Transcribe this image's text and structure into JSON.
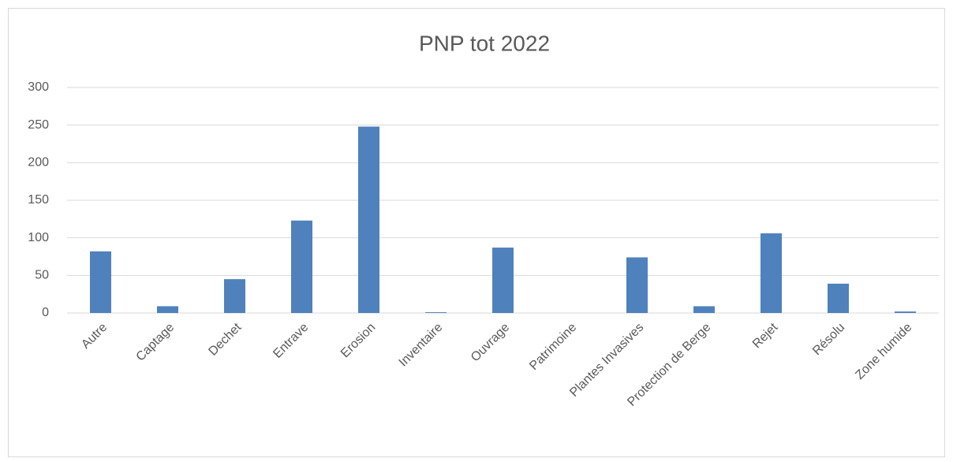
{
  "chart_data": {
    "type": "bar",
    "title": "PNP tot 2022",
    "categories": [
      "Autre",
      "Captage",
      "Dechet",
      "Entrave",
      "Erosion",
      "Inventaire",
      "Ouvrage",
      "Patrimoine",
      "Plantes Invasives",
      "Protection de Berge",
      "Rejet",
      "Résolu",
      "Zone humide"
    ],
    "values": [
      82,
      9,
      45,
      123,
      248,
      1,
      87,
      0,
      74,
      9,
      106,
      39,
      2
    ],
    "color": "#4f81bd",
    "ylim": [
      0,
      300
    ],
    "yticks": [
      0,
      50,
      100,
      150,
      200,
      250,
      300
    ],
    "grid": true
  }
}
